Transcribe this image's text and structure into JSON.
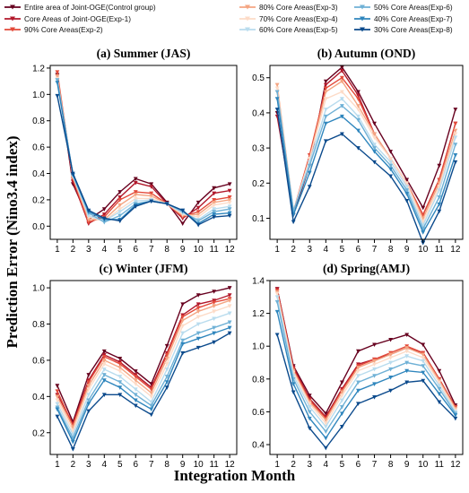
{
  "xlabel": "Integration Month",
  "ylabel": "Prediction Error (Nino3.4 index)",
  "legend": [
    {
      "name": "Entire area of Joint-OGE(Control group)",
      "color": "#67001f"
    },
    {
      "name": "Core Areas of Joint-OGE(Exp-1)",
      "color": "#b2182b"
    },
    {
      "name": "90% Core Areas(Exp-2)",
      "color": "#e34a3a"
    },
    {
      "name": "80% Core Areas(Exp-3)",
      "color": "#f4a582"
    },
    {
      "name": "70% Core Areas(Exp-4)",
      "color": "#fddbc7"
    },
    {
      "name": "60% Core Areas(Exp-5)",
      "color": "#b9dcee"
    },
    {
      "name": "50% Core Areas(Exp-6)",
      "color": "#6fb1d6"
    },
    {
      "name": "40% Core Areas(Exp-7)",
      "color": "#2f86bd"
    },
    {
      "name": "30% Core Areas(Exp-8)",
      "color": "#0b4a8c"
    }
  ],
  "chart_data": [
    {
      "type": "line",
      "title": "(a) Summer (JAS)",
      "x": [
        1,
        2,
        3,
        4,
        5,
        6,
        7,
        8,
        9,
        10,
        11,
        12
      ],
      "ylim": [
        -0.1,
        1.22
      ],
      "yticks": [
        0.0,
        0.2,
        0.4,
        0.6,
        0.8,
        1.0,
        1.2
      ],
      "ytick_labels": [
        "0.0",
        "0.2",
        "0.4",
        "0.6",
        "0.8",
        "1.0",
        "1.2"
      ],
      "series": [
        {
          "name": "Entire area of Joint-OGE(Control group)",
          "values": [
            1.15,
            0.32,
            0.05,
            0.13,
            0.26,
            0.36,
            0.32,
            0.18,
            0.02,
            0.18,
            0.29,
            0.32
          ]
        },
        {
          "name": "Core Areas of Joint-OGE(Exp-1)",
          "values": [
            1.14,
            0.34,
            0.02,
            0.09,
            0.22,
            0.33,
            0.3,
            0.17,
            0.06,
            0.14,
            0.25,
            0.27
          ]
        },
        {
          "name": "90% Core Areas(Exp-2)",
          "values": [
            1.17,
            0.36,
            0.03,
            0.07,
            0.2,
            0.26,
            0.25,
            0.17,
            0.07,
            0.11,
            0.2,
            0.22
          ]
        },
        {
          "name": "80% Core Areas(Exp-3)",
          "values": [
            1.14,
            0.37,
            0.05,
            0.05,
            0.16,
            0.24,
            0.23,
            0.17,
            0.08,
            0.09,
            0.18,
            0.2
          ]
        },
        {
          "name": "70% Core Areas(Exp-4)",
          "values": [
            1.12,
            0.38,
            0.07,
            0.04,
            0.13,
            0.21,
            0.21,
            0.17,
            0.09,
            0.07,
            0.16,
            0.18
          ]
        },
        {
          "name": "60% Core Areas(Exp-5)",
          "values": [
            1.11,
            0.38,
            0.08,
            0.04,
            0.11,
            0.19,
            0.2,
            0.17,
            0.1,
            0.05,
            0.13,
            0.15
          ]
        },
        {
          "name": "50% Core Areas(Exp-6)",
          "values": [
            1.11,
            0.39,
            0.1,
            0.03,
            0.08,
            0.17,
            0.19,
            0.17,
            0.11,
            0.04,
            0.11,
            0.13
          ]
        },
        {
          "name": "40% Core Areas(Exp-7)",
          "values": [
            1.09,
            0.39,
            0.11,
            0.05,
            0.05,
            0.16,
            0.19,
            0.17,
            0.12,
            0.02,
            0.09,
            0.1
          ]
        },
        {
          "name": "30% Core Areas(Exp-8)",
          "values": [
            0.99,
            0.4,
            0.12,
            0.06,
            0.04,
            0.15,
            0.19,
            0.17,
            0.12,
            0.01,
            0.07,
            0.08
          ]
        }
      ]
    },
    {
      "type": "line",
      "title": "(b) Autumn (OND)",
      "x": [
        1,
        2,
        3,
        4,
        5,
        6,
        7,
        8,
        9,
        10,
        11,
        12
      ],
      "ylim": [
        0.04,
        0.535
      ],
      "yticks": [
        0.1,
        0.2,
        0.3,
        0.4,
        0.5
      ],
      "ytick_labels": [
        "0.1",
        "0.2",
        "0.3",
        "0.4",
        "0.5"
      ],
      "series": [
        {
          "name": "Entire area of Joint-OGE(Control group)",
          "values": [
            0.4,
            0.11,
            0.25,
            0.49,
            0.53,
            0.46,
            0.37,
            0.29,
            0.21,
            0.13,
            0.25,
            0.41
          ]
        },
        {
          "name": "Core Areas of Joint-OGE(Exp-1)",
          "values": [
            0.39,
            0.12,
            0.26,
            0.48,
            0.52,
            0.45,
            0.34,
            0.27,
            0.2,
            0.11,
            0.21,
            0.37
          ]
        },
        {
          "name": "90% Core Areas(Exp-2)",
          "values": [
            0.46,
            0.12,
            0.28,
            0.47,
            0.5,
            0.44,
            0.34,
            0.27,
            0.2,
            0.11,
            0.21,
            0.37
          ]
        },
        {
          "name": "80% Core Areas(Exp-3)",
          "values": [
            0.48,
            0.12,
            0.27,
            0.46,
            0.49,
            0.42,
            0.34,
            0.27,
            0.2,
            0.1,
            0.2,
            0.35
          ]
        },
        {
          "name": "70% Core Areas(Exp-4)",
          "values": [
            0.47,
            0.12,
            0.27,
            0.44,
            0.46,
            0.41,
            0.33,
            0.27,
            0.2,
            0.09,
            0.19,
            0.34
          ]
        },
        {
          "name": "60% Core Areas(Exp-5)",
          "values": [
            0.46,
            0.12,
            0.26,
            0.41,
            0.44,
            0.39,
            0.31,
            0.26,
            0.19,
            0.08,
            0.18,
            0.33
          ]
        },
        {
          "name": "50% Core Areas(Exp-6)",
          "values": [
            0.46,
            0.12,
            0.25,
            0.39,
            0.42,
            0.38,
            0.3,
            0.25,
            0.18,
            0.07,
            0.16,
            0.31
          ]
        },
        {
          "name": "40% Core Areas(Exp-7)",
          "values": [
            0.44,
            0.11,
            0.23,
            0.37,
            0.39,
            0.35,
            0.29,
            0.24,
            0.17,
            0.06,
            0.14,
            0.28
          ]
        },
        {
          "name": "30% Core Areas(Exp-8)",
          "values": [
            0.41,
            0.09,
            0.19,
            0.32,
            0.34,
            0.3,
            0.26,
            0.22,
            0.15,
            0.03,
            0.12,
            0.26
          ]
        }
      ]
    },
    {
      "type": "line",
      "title": "(c) Winter (JFM)",
      "x": [
        1,
        2,
        3,
        4,
        5,
        6,
        7,
        8,
        9,
        10,
        11,
        12
      ],
      "ylim": [
        0.08,
        1.04
      ],
      "yticks": [
        0.2,
        0.4,
        0.6,
        0.8,
        1.0
      ],
      "ytick_labels": [
        "0.2",
        "0.4",
        "0.6",
        "0.8",
        "1.0"
      ],
      "series": [
        {
          "name": "Entire area of Joint-OGE(Control group)",
          "values": [
            0.46,
            0.26,
            0.52,
            0.65,
            0.61,
            0.54,
            0.47,
            0.68,
            0.91,
            0.96,
            0.98,
            1.0
          ]
        },
        {
          "name": "Core Areas of Joint-OGE(Exp-1)",
          "values": [
            0.41,
            0.25,
            0.49,
            0.63,
            0.59,
            0.52,
            0.45,
            0.64,
            0.85,
            0.91,
            0.93,
            0.96
          ]
        },
        {
          "name": "90% Core Areas(Exp-2)",
          "values": [
            0.43,
            0.24,
            0.48,
            0.62,
            0.58,
            0.51,
            0.44,
            0.63,
            0.84,
            0.89,
            0.92,
            0.94
          ]
        },
        {
          "name": "80% Core Areas(Exp-3)",
          "values": [
            0.4,
            0.23,
            0.46,
            0.6,
            0.56,
            0.49,
            0.42,
            0.61,
            0.82,
            0.87,
            0.9,
            0.93
          ]
        },
        {
          "name": "70% Core Areas(Exp-4)",
          "values": [
            0.38,
            0.21,
            0.44,
            0.58,
            0.54,
            0.47,
            0.4,
            0.58,
            0.79,
            0.84,
            0.87,
            0.9
          ]
        },
        {
          "name": "60% Core Areas(Exp-5)",
          "values": [
            0.36,
            0.19,
            0.41,
            0.55,
            0.51,
            0.44,
            0.37,
            0.55,
            0.75,
            0.8,
            0.83,
            0.86
          ]
        },
        {
          "name": "50% Core Areas(Exp-6)",
          "values": [
            0.34,
            0.17,
            0.38,
            0.52,
            0.48,
            0.41,
            0.35,
            0.51,
            0.71,
            0.75,
            0.78,
            0.81
          ]
        },
        {
          "name": "40% Core Areas(Exp-7)",
          "values": [
            0.33,
            0.15,
            0.36,
            0.49,
            0.45,
            0.38,
            0.33,
            0.48,
            0.69,
            0.72,
            0.75,
            0.78
          ]
        },
        {
          "name": "30% Core Areas(Exp-8)",
          "values": [
            0.29,
            0.11,
            0.32,
            0.41,
            0.41,
            0.35,
            0.3,
            0.45,
            0.64,
            0.67,
            0.7,
            0.75
          ]
        }
      ]
    },
    {
      "type": "line",
      "title": "(d) Spring(AMJ)",
      "x": [
        1,
        2,
        3,
        4,
        5,
        6,
        7,
        8,
        9,
        10,
        11,
        12
      ],
      "ylim": [
        0.34,
        1.4
      ],
      "yticks": [
        0.4,
        0.6,
        0.8,
        1.0,
        1.2,
        1.4
      ],
      "ytick_labels": [
        "0.4",
        "0.6",
        "0.8",
        "1.0",
        "1.2",
        "1.4"
      ],
      "series": [
        {
          "name": "Entire area of Joint-OGE(Control group)",
          "values": [
            1.35,
            0.88,
            0.7,
            0.59,
            0.78,
            0.97,
            1.01,
            1.04,
            1.07,
            1.01,
            0.85,
            0.64
          ]
        },
        {
          "name": "Core Areas of Joint-OGE(Exp-1)",
          "values": [
            1.35,
            0.87,
            0.68,
            0.57,
            0.74,
            0.89,
            0.92,
            0.95,
            0.99,
            0.96,
            0.8,
            0.63
          ]
        },
        {
          "name": "90% Core Areas(Exp-2)",
          "values": [
            1.34,
            0.86,
            0.67,
            0.56,
            0.73,
            0.88,
            0.92,
            0.96,
            1.0,
            0.96,
            0.8,
            0.63
          ]
        },
        {
          "name": "80% Core Areas(Exp-3)",
          "values": [
            1.33,
            0.85,
            0.66,
            0.55,
            0.72,
            0.87,
            0.91,
            0.95,
            0.99,
            0.95,
            0.79,
            0.62
          ]
        },
        {
          "name": "70% Core Areas(Exp-4)",
          "values": [
            1.32,
            0.84,
            0.65,
            0.53,
            0.7,
            0.85,
            0.89,
            0.93,
            0.97,
            0.93,
            0.78,
            0.61
          ]
        },
        {
          "name": "60% Core Areas(Exp-5)",
          "values": [
            1.3,
            0.82,
            0.63,
            0.51,
            0.67,
            0.82,
            0.86,
            0.9,
            0.94,
            0.91,
            0.76,
            0.6
          ]
        },
        {
          "name": "50% Core Areas(Exp-6)",
          "values": [
            1.27,
            0.8,
            0.6,
            0.48,
            0.63,
            0.78,
            0.82,
            0.86,
            0.9,
            0.88,
            0.74,
            0.59
          ]
        },
        {
          "name": "40% Core Areas(Exp-7)",
          "values": [
            1.21,
            0.77,
            0.56,
            0.44,
            0.59,
            0.73,
            0.77,
            0.81,
            0.85,
            0.84,
            0.71,
            0.58
          ]
        },
        {
          "name": "30% Core Areas(Exp-8)",
          "values": [
            1.07,
            0.72,
            0.5,
            0.38,
            0.51,
            0.65,
            0.69,
            0.73,
            0.78,
            0.79,
            0.66,
            0.56
          ]
        }
      ]
    }
  ]
}
